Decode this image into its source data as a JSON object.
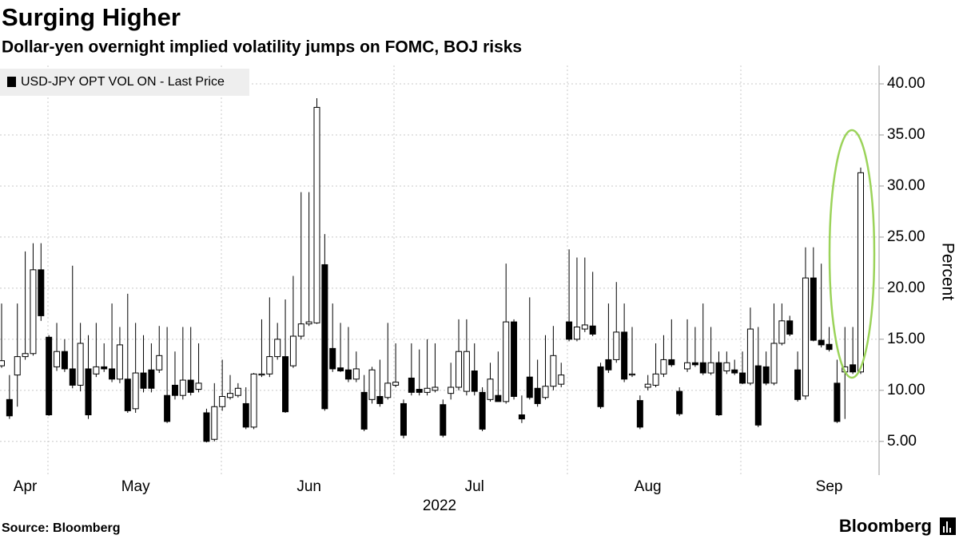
{
  "chart_data": {
    "type": "candlestick",
    "title": "Surging Higher",
    "subtitle": "Dollar-yen overnight implied volatility jumps on FOMC, BOJ risks",
    "xlabel": "2022",
    "ylabel": "Percent",
    "source": "Source: Bloomberg",
    "logo": "Bloomberg",
    "categories": [
      null,
      null,
      null,
      "Apr",
      null,
      null,
      null,
      null,
      null,
      null,
      null,
      null,
      null,
      null,
      null,
      null,
      null,
      "May",
      null,
      null,
      null,
      null,
      null,
      null,
      null,
      null,
      null,
      null,
      null,
      null,
      null,
      null,
      null,
      null,
      null,
      null,
      null,
      null,
      null,
      "Jun",
      null,
      null,
      null,
      null,
      null,
      null,
      null,
      null,
      null,
      null,
      null,
      null,
      null,
      null,
      null,
      null,
      null,
      null,
      null,
      null,
      "Jul",
      null,
      null,
      null,
      null,
      null,
      null,
      null,
      null,
      null,
      null,
      null,
      null,
      null,
      null,
      null,
      null,
      null,
      null,
      null,
      null,
      null,
      "Aug",
      null,
      null,
      null,
      null,
      null,
      null,
      null,
      null,
      null,
      null,
      null,
      null,
      null,
      null,
      null,
      null,
      null,
      null,
      null,
      null,
      null,
      null,
      "Sep",
      null,
      null,
      null,
      null
    ],
    "series": [
      {
        "name": "USD-JPY OPT VOL ON - Last Price",
        "color": "#000000",
        "up_fill": "#ffffff",
        "open": [
          12.4,
          9.1,
          11.5,
          13.3,
          13.6,
          21.8,
          15.2,
          12.3,
          13.8,
          12.1,
          10.5,
          12.1,
          11.6,
          12.3,
          12.1,
          11.1,
          11.1,
          8.2,
          11.7,
          12.0,
          12.0,
          9.5,
          10.5,
          9.5,
          11.0,
          10.1,
          7.8,
          5.2,
          8.4,
          9.3,
          9.5,
          8.7,
          6.4,
          11.5,
          11.6,
          13.3,
          13.3,
          12.4,
          15.3,
          16.5,
          16.6,
          22.3,
          14.1,
          12.2,
          12.0,
          11.1,
          9.8,
          9.1,
          9.4,
          9.3,
          10.5,
          8.7,
          11.2,
          10.1,
          9.8,
          10.0,
          8.6,
          9.7,
          10.3,
          9.9,
          11.9,
          9.8,
          9.1,
          9.5,
          8.9,
          16.7,
          7.6,
          11.3,
          10.2,
          9.3,
          10.4,
          10.6,
          16.7,
          15.0,
          16.0,
          16.3,
          12.3,
          13.0,
          13.0,
          15.7,
          11.5,
          9.0,
          10.3,
          10.5,
          11.6,
          13.0,
          9.9,
          12.1,
          12.7,
          12.7,
          11.7,
          12.7,
          11.9,
          12.0,
          11.7,
          10.7,
          12.4,
          12.3,
          10.7,
          14.6,
          16.8,
          12.0,
          9.45,
          21.0,
          14.9,
          14.5,
          10.7,
          11.8,
          12.5,
          11.8
        ],
        "high": [
          18.5,
          11.5,
          18.5,
          23.6,
          24.4,
          24.4,
          15.4,
          16.6,
          15.0,
          22.2,
          16.6,
          15.4,
          16.6,
          14.6,
          18.5,
          16.2,
          19.45,
          16.6,
          15.4,
          14.6,
          16.3,
          16.2,
          13.8,
          16.2,
          16.2,
          14.6,
          8.2,
          10.7,
          13.0,
          11.5,
          10.7,
          10.3,
          11.7,
          16.95,
          19.1,
          16.6,
          18.9,
          21.2,
          29.4,
          29.4,
          38.6,
          25.3,
          18.5,
          16.6,
          16.2,
          13.8,
          11.5,
          12.3,
          13.0,
          16.6,
          14.6,
          9.1,
          14.6,
          14.0,
          15.0,
          14.6,
          9.1,
          12.7,
          16.95,
          16.95,
          14.6,
          10.3,
          12.7,
          13.8,
          22.4,
          16.95,
          9.5,
          19.1,
          13.0,
          15.4,
          16.3,
          12.7,
          23.8,
          23.0,
          23.0,
          21.6,
          12.7,
          18.5,
          20.6,
          18.5,
          16.2,
          9.5,
          11.5,
          14.6,
          15.4,
          16.95,
          10.3,
          16.95,
          16.2,
          18.5,
          16.2,
          13.8,
          13.8,
          13.0,
          13.8,
          18.1,
          16.2,
          13.8,
          18.5,
          18.5,
          17.3,
          13.8,
          24.0,
          24.0,
          22.4,
          16.2,
          13.0,
          16.2,
          16.2,
          31.8
        ],
        "low": [
          12.2,
          7.2,
          8.4,
          13.0,
          13.4,
          16.8,
          7.5,
          11.9,
          11.8,
          10.2,
          9.9,
          7.2,
          11.3,
          11.8,
          10.8,
          10.7,
          7.8,
          7.8,
          9.8,
          9.8,
          11.7,
          6.8,
          9.1,
          9.1,
          9.5,
          9.8,
          4.9,
          5.0,
          8.0,
          9.1,
          9.3,
          6.2,
          6.2,
          11.3,
          11.3,
          13.0,
          7.8,
          12.2,
          15.0,
          16.3,
          16.5,
          8.0,
          11.8,
          11.8,
          10.8,
          10.8,
          6.0,
          8.7,
          8.4,
          9.1,
          10.3,
          5.3,
          9.5,
          9.5,
          9.5,
          9.8,
          5.4,
          9.1,
          10.0,
          9.5,
          9.5,
          6.0,
          8.9,
          9.1,
          8.7,
          9.1,
          6.8,
          9.1,
          8.4,
          9.1,
          10.0,
          10.3,
          14.8,
          14.8,
          15.7,
          15.3,
          8.2,
          11.7,
          12.7,
          10.8,
          11.3,
          6.2,
          10.0,
          10.3,
          11.3,
          12.3,
          7.5,
          11.8,
          12.3,
          11.5,
          11.5,
          7.5,
          11.6,
          11.5,
          10.6,
          10.5,
          6.4,
          10.5,
          10.5,
          14.4,
          15.3,
          8.9,
          9.1,
          14.8,
          14.2,
          13.8,
          6.8,
          7.2,
          11.6,
          11.6
        ],
        "close": [
          12.9,
          7.5,
          13.3,
          13.6,
          21.8,
          17.3,
          7.6,
          13.8,
          12.1,
          10.5,
          14.6,
          7.6,
          12.3,
          12.1,
          11.1,
          14.45,
          8.0,
          11.7,
          10.2,
          10.2,
          13.4,
          6.95,
          9.5,
          11.0,
          9.8,
          10.7,
          5.0,
          8.4,
          9.4,
          9.7,
          10.2,
          6.4,
          11.6,
          11.6,
          13.3,
          15.0,
          7.9,
          15.3,
          16.5,
          16.7,
          37.7,
          8.2,
          12.1,
          11.9,
          11.1,
          12.1,
          6.2,
          12.0,
          8.7,
          10.7,
          10.8,
          5.6,
          9.8,
          9.8,
          10.2,
          10.3,
          5.6,
          10.3,
          13.8,
          13.8,
          9.9,
          6.2,
          11.1,
          8.9,
          16.7,
          9.4,
          7.2,
          9.3,
          8.7,
          10.4,
          13.4,
          11.5,
          15.0,
          16.2,
          16.4,
          15.5,
          8.4,
          12.0,
          15.7,
          11.1,
          11.6,
          6.4,
          10.6,
          11.6,
          13.0,
          12.5,
          7.7,
          12.7,
          12.5,
          11.7,
          12.7,
          7.6,
          12.7,
          11.7,
          10.7,
          16.0,
          6.6,
          10.7,
          14.6,
          16.8,
          15.5,
          9.1,
          21.0,
          14.9,
          14.45,
          14.0,
          6.95,
          12.3,
          11.8,
          31.3
        ]
      }
    ],
    "ylim": [
      1.7,
      41.8
    ],
    "yticks": [
      {
        "value": 5,
        "label": "5.00"
      },
      {
        "value": 10,
        "label": "10.00"
      },
      {
        "value": 15,
        "label": "15.00"
      },
      {
        "value": 20,
        "label": "20.00"
      },
      {
        "value": 25,
        "label": "25.00"
      },
      {
        "value": 30,
        "label": "30.00"
      },
      {
        "value": 35,
        "label": "35.00"
      },
      {
        "value": 40,
        "label": "40.00"
      }
    ],
    "grid": true,
    "legend": "top-left"
  }
}
